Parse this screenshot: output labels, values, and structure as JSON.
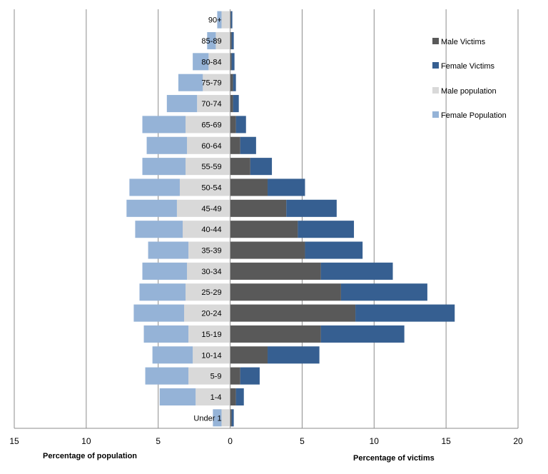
{
  "chart_data": {
    "type": "bar",
    "categories": [
      "Under 1",
      "1-4",
      "5-9",
      "10-14",
      "15-19",
      "20-24",
      "25-29",
      "30-34",
      "35-39",
      "40-44",
      "45-49",
      "50-54",
      "55-59",
      "60-64",
      "65-69",
      "70-74",
      "75-79",
      "80-84",
      "85-89",
      "90+"
    ],
    "series": [
      {
        "name": "Male Victims",
        "color": "#595959",
        "values": [
          0.1,
          0.4,
          0.7,
          2.6,
          6.3,
          8.7,
          7.7,
          6.3,
          5.2,
          4.7,
          3.9,
          2.6,
          1.4,
          0.7,
          0.4,
          0.2,
          0.2,
          0.1,
          0.1,
          0.05
        ]
      },
      {
        "name": "Female Victims",
        "color": "#365f91",
        "values": [
          0.15,
          0.55,
          1.35,
          3.6,
          5.8,
          6.9,
          6.0,
          5.0,
          4.0,
          3.9,
          3.5,
          2.6,
          1.5,
          1.1,
          0.7,
          0.4,
          0.2,
          0.2,
          0.15,
          0.1
        ]
      },
      {
        "name": "Male population",
        "color": "#d9d9d9",
        "values": [
          0.6,
          2.4,
          2.9,
          2.6,
          2.9,
          3.2,
          3.1,
          3.0,
          2.9,
          3.3,
          3.7,
          3.5,
          3.1,
          3.0,
          3.1,
          2.3,
          1.9,
          1.5,
          1.0,
          0.6
        ]
      },
      {
        "name": "Female Population",
        "color": "#95b3d7",
        "values": [
          0.6,
          2.5,
          3.0,
          2.8,
          3.1,
          3.5,
          3.2,
          3.1,
          2.8,
          3.3,
          3.5,
          3.5,
          3.0,
          2.8,
          3.0,
          2.1,
          1.7,
          1.1,
          0.6,
          0.3
        ]
      }
    ],
    "x_ticks": [
      "15",
      "10",
      "5",
      "0",
      "5",
      "10",
      "15",
      "20"
    ],
    "xlim": [
      -15,
      20
    ],
    "xlabel_left": "Percentage of population",
    "xlabel_right": "Percentage of victims",
    "grid": true,
    "legend_position": "right"
  }
}
